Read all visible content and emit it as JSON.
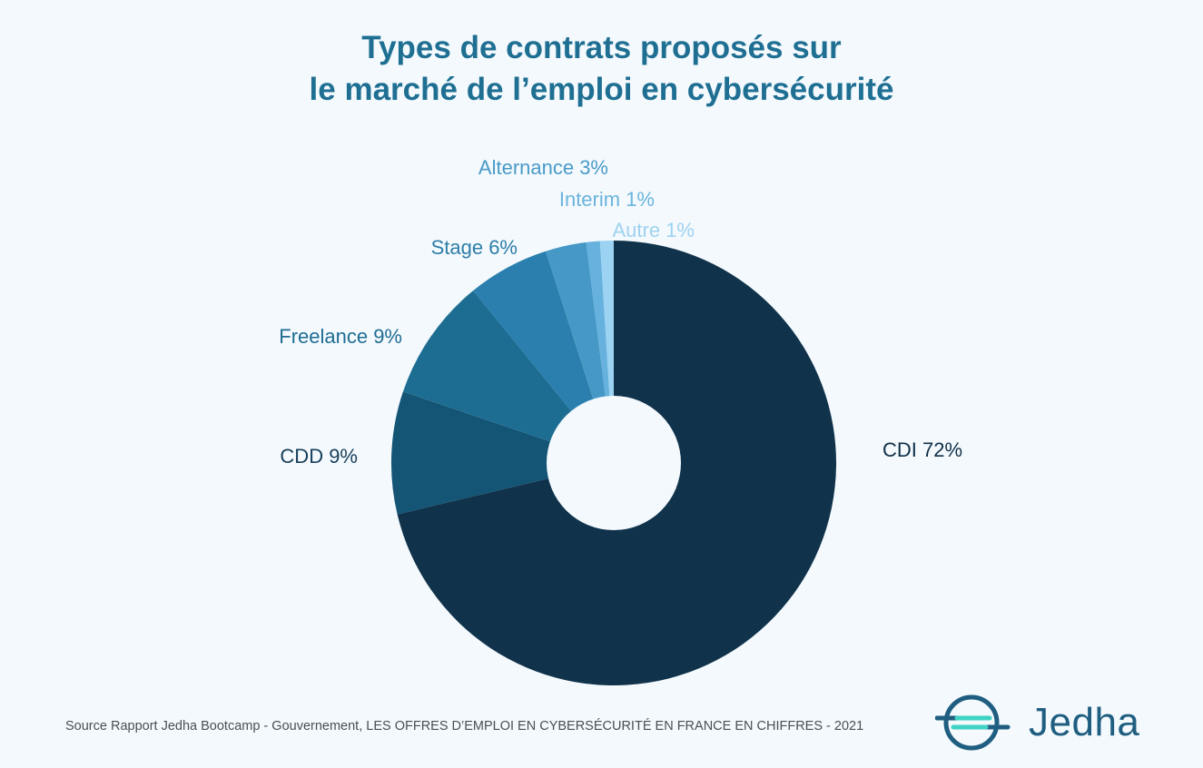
{
  "title": {
    "line1": "Types de contrats proposés sur",
    "line2": "le marché de l’emploi en cybersécurité"
  },
  "chart_data": {
    "type": "pie",
    "donut": true,
    "title": "Types de contrats proposés sur le marché de l’emploi en cybersécurité",
    "slices": [
      {
        "label": "CDI",
        "value": 72,
        "display": "CDI 72%",
        "color": "#10324a",
        "label_color": "#0f2f47"
      },
      {
        "label": "CDD",
        "value": 9,
        "display": "CDD 9%",
        "color": "#145474",
        "label_color": "#173e5a"
      },
      {
        "label": "Freelance",
        "value": 9,
        "display": "Freelance 9%",
        "color": "#1d6d93",
        "label_color": "#1f6d93"
      },
      {
        "label": "Stage",
        "value": 6,
        "display": "Stage 6%",
        "color": "#2a7fae",
        "label_color": "#2f7ea8"
      },
      {
        "label": "Alternance",
        "value": 3,
        "display": "Alternance 3%",
        "color": "#4699c7",
        "label_color": "#4b9bc8"
      },
      {
        "label": "Interim",
        "value": 1,
        "display": "Interim 1%",
        "color": "#66b1de",
        "label_color": "#6bb4dc"
      },
      {
        "label": "Autre",
        "value": 1,
        "display": "Autre 1%",
        "color": "#9cd3f2",
        "label_color": "#9fd2ef"
      }
    ]
  },
  "source": "Source Rapport Jedha Bootcamp - Gouvernement, LES OFFRES D’EMPLOI EN CYBERSÉCURITÉ EN FRANCE EN CHIFFRES - 2021",
  "logo": {
    "name": "Jedha",
    "icon": "jedha-logo-icon",
    "color": "#1f5e80",
    "accent": "#3fd3c4"
  }
}
